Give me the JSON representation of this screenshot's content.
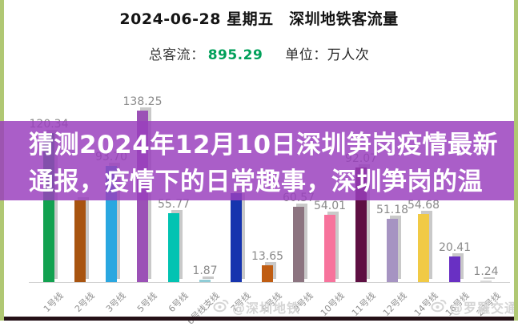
{
  "header": {
    "title": "2024-06-28 星期五　深圳地铁客流量",
    "total_label": "总客流：",
    "total_value": "895.29",
    "total_color": "#00a05a",
    "unit_label": "单位：万人次"
  },
  "overlay": {
    "line1": "猜测2024年12月10日深圳笋岗疫情最新",
    "line2": "通报，疫情下的日常趣事，深圳笋岗的温",
    "background_rgba": "rgba(154,63,190,0.84)",
    "text_color": "#ffffff"
  },
  "watermarks": {
    "left": "@深圳地铁",
    "right": "@罗羅交通",
    "color": "#d5d5d5"
  },
  "frame": {
    "side_border_color": "#b0c873",
    "bottom_bar_color": "#241016",
    "background": "#ffffff"
  },
  "chart_data": {
    "type": "bar",
    "title": "2024-06-28 星期五 深圳地铁客流量",
    "xlabel": "",
    "ylabel": "万人次",
    "unit": "万人次",
    "total": 895.29,
    "ylim": [
      0,
      145
    ],
    "grid": false,
    "legend": "none",
    "categories": [
      "1号线",
      "2号线",
      "3号线",
      "5号线",
      "6号线",
      "6号线支线",
      "7号线",
      "8号线",
      "9号线",
      "10号线",
      "11号线",
      "12号线",
      "14号线",
      "16号线",
      "20号线"
    ],
    "values": [
      120.34,
      66.0,
      93.7,
      138.25,
      55.77,
      1.87,
      71.55,
      13.65,
      60.57,
      54.01,
      92.07,
      51.18,
      54.68,
      20.41,
      1.24
    ],
    "value_labels": [
      "120.34",
      null,
      "93.70",
      "138.25",
      "55.77",
      "1.87",
      null,
      "13.65",
      "60.57",
      "54.01",
      "92.07",
      "51.18",
      "54.68",
      "20.41",
      "1.24"
    ],
    "bar_colors": [
      "#12a150",
      "#a85410",
      "#2aa7e0",
      "#9b51b6",
      "#02c3b2",
      "#8fccd6",
      "#1634ae",
      "#c05d12",
      "#8c7480",
      "#f7739c",
      "#5e0f42",
      "#a694c2",
      "#f1ca45",
      "#6930c3",
      "#d9d9d9"
    ],
    "value_label_color": "#8a8a8a",
    "axis_label_color": "#8f8f8f",
    "axis_line_color": "#d2d2d2",
    "bar_shadow_color": "#c9c9c9"
  }
}
